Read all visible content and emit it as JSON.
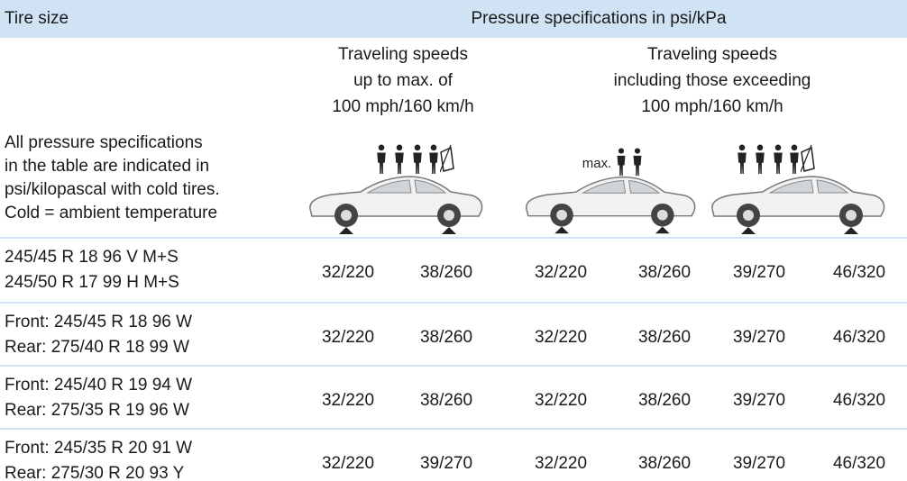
{
  "header": {
    "tire_size": "Tire size",
    "pressure_spec": "Pressure specifications in psi/kPa"
  },
  "speed_groups": [
    {
      "lines": [
        "Traveling speeds",
        "up to max. of",
        "100 mph/160 km/h"
      ]
    },
    {
      "lines": [
        "Traveling speeds",
        "including those exceeding",
        "100 mph/160 km/h"
      ]
    }
  ],
  "note": [
    "All pressure specifications",
    "in the table are indicated in",
    "psi/kilopascal with cold tires.",
    "Cold = ambient temperature"
  ],
  "load_label": "max.",
  "rows": [
    {
      "tire": [
        "245/45 R 18 96 V M+S",
        "245/50 R 17 99 H M+S"
      ],
      "values": [
        "32/220",
        "38/260",
        "32/220",
        "38/260",
        "39/270",
        "46/320"
      ]
    },
    {
      "tire": [
        "Front: 245/45 R 18 96 W",
        "Rear: 275/40 R 18 99 W"
      ],
      "values": [
        "32/220",
        "38/260",
        "32/220",
        "38/260",
        "39/270",
        "46/320"
      ]
    },
    {
      "tire": [
        "Front: 245/40 R 19 94 W",
        "Rear: 275/35 R 19 96 W"
      ],
      "values": [
        "32/220",
        "38/260",
        "32/220",
        "38/260",
        "39/270",
        "46/320"
      ]
    },
    {
      "tire": [
        "Front: 245/35 R 20 91 W",
        "Rear: 275/30 R 20 93 Y"
      ],
      "values": [
        "32/220",
        "39/270",
        "32/220",
        "38/260",
        "39/270",
        "46/320"
      ]
    }
  ]
}
